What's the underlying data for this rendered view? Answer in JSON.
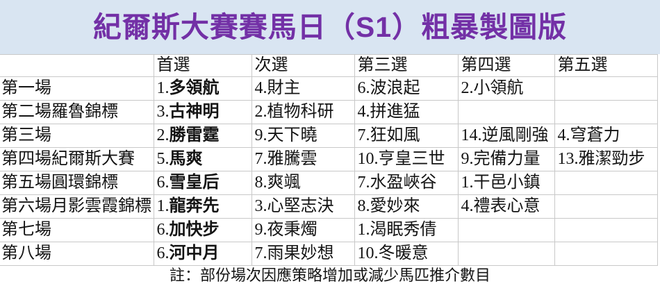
{
  "title": "紀爾斯大賽賽馬日（S1）粗暴製圖版",
  "footer_note": "註：部份場次因應策略增加或減少馬匹推介數目",
  "colors": {
    "title_text": "#7330a6",
    "title_band_bg": "#d9e5f2",
    "table_bg": "#ffffff",
    "grid_border": "#c8c8c8",
    "body_text": "#141414"
  },
  "table": {
    "columns": [
      "",
      "首選",
      "次選",
      "第三選",
      "第四選",
      "第五選"
    ],
    "rows": [
      {
        "race": "第一場",
        "picks": [
          "1.多領航",
          "4.財主",
          "6.波浪起",
          "2.小領航",
          ""
        ]
      },
      {
        "race": "第二場羅魯錦標",
        "picks": [
          "3.古神明",
          "2.植物科研",
          "4.拼進猛",
          "",
          ""
        ]
      },
      {
        "race": "第三場",
        "picks": [
          "2.勝雷霆",
          "9.天下曉",
          "7.狂如風",
          "14.逆風剛強",
          "4.穹蒼力"
        ]
      },
      {
        "race": "第四場紀爾斯大賽",
        "picks": [
          "5.馬爽",
          "7.雅騰雲",
          "10.亨皇三世",
          "9.完備力量",
          "13.雅潔勁步"
        ]
      },
      {
        "race": "第五場圓環錦標",
        "picks": [
          "6.雪皇后",
          "8.爽颯",
          "7.水盈峽谷",
          "1.干邑小鎮",
          ""
        ]
      },
      {
        "race": "第六場月影雲霞錦標",
        "picks": [
          "1.龍奔先",
          "3.心堅志決",
          "8.愛妙來",
          "4.禮表心意",
          ""
        ]
      },
      {
        "race": "第七場",
        "picks": [
          "6.加快步",
          "9.夜秉燭",
          "1.渴眠秀倩",
          "",
          ""
        ]
      },
      {
        "race": "第八場",
        "picks": [
          "6.河中月",
          "7.雨果妙想",
          "10.冬暖意",
          "",
          ""
        ]
      }
    ]
  }
}
